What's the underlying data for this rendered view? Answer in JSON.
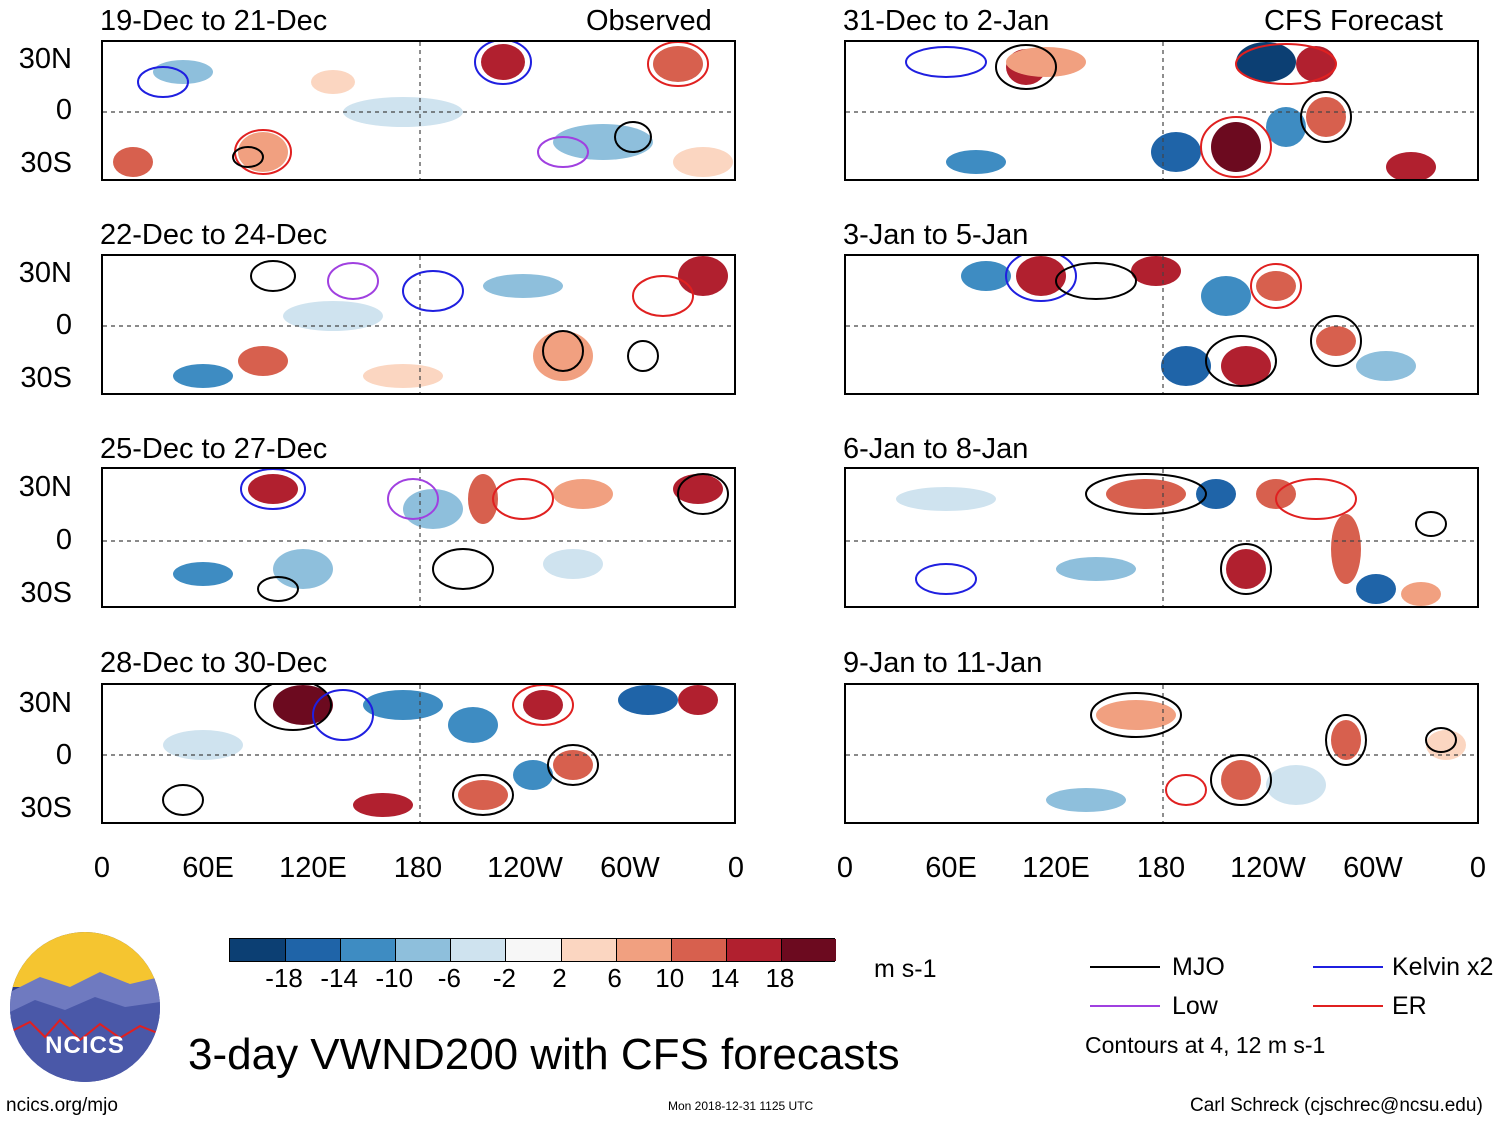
{
  "panels_left": [
    {
      "title": "19-Dec to 21-Dec",
      "label": "Observed"
    },
    {
      "title": "22-Dec to 24-Dec",
      "label": ""
    },
    {
      "title": "25-Dec to 27-Dec",
      "label": ""
    },
    {
      "title": "28-Dec to 30-Dec",
      "label": ""
    }
  ],
  "panels_right": [
    {
      "title": "31-Dec to 2-Jan",
      "label": "CFS Forecast"
    },
    {
      "title": "3-Jan to 5-Jan",
      "label": ""
    },
    {
      "title": "6-Jan to 8-Jan",
      "label": ""
    },
    {
      "title": "9-Jan to 11-Jan",
      "label": ""
    }
  ],
  "lat_labels": [
    "30N",
    "0",
    "30S"
  ],
  "lon_labels": [
    "0",
    "60E",
    "120E",
    "180",
    "120W",
    "60W",
    "0"
  ],
  "colorbar": {
    "ticks": [
      "-18",
      "-14",
      "-10",
      "-6",
      "-2",
      "2",
      "6",
      "10",
      "14",
      "18"
    ],
    "colors": [
      "#0c3f73",
      "#1f64a8",
      "#3e8cc2",
      "#8ebfdc",
      "#cfe3ef",
      "#f7f7f7",
      "#fbd6c1",
      "#f1a080",
      "#d7604e",
      "#b1202f",
      "#6c0a1f"
    ],
    "units": "m s-1"
  },
  "legend": {
    "items": [
      {
        "label": "MJO",
        "color": "#000000"
      },
      {
        "label": "Kelvin x2",
        "color": "#1f1fe0"
      },
      {
        "label": "Low",
        "color": "#a040e0"
      },
      {
        "label": "ER",
        "color": "#e02020"
      }
    ],
    "note": "Contours at 4, 12 m s-1"
  },
  "main_title": "3-day VWND200 with CFS forecasts",
  "logo_text": "NCICS",
  "url": "ncics.org/mjo",
  "timestamp": "Mon 2018-12-31 1125 UTC",
  "credit": "Carl Schreck (cjschrec@ncsu.edu)"
}
